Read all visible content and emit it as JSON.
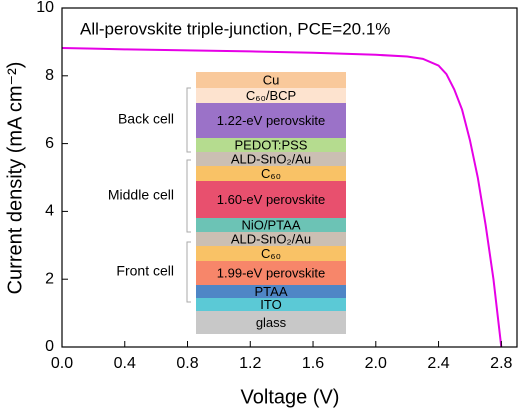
{
  "chart_data": {
    "type": "line",
    "title": "All-perovskite triple-junction, PCE=20.1%",
    "x_label": "Voltage (V)",
    "y_label": "Current density (mA cm⁻²)",
    "x": [
      0,
      0.2,
      0.4,
      0.8,
      1.2,
      1.6,
      2.0,
      2.2,
      2.3,
      2.4,
      2.45,
      2.5,
      2.55,
      2.6,
      2.65,
      2.7,
      2.75,
      2.8
    ],
    "values": [
      8.82,
      8.8,
      8.78,
      8.75,
      8.72,
      8.68,
      8.62,
      8.57,
      8.5,
      8.3,
      8.05,
      7.6,
      7.0,
      6.1,
      5.0,
      3.6,
      2.0,
      0
    ],
    "color": "#e600e6",
    "xlim": [
      0,
      2.9
    ],
    "ylim": [
      0,
      10
    ],
    "xticks": [
      {
        "value": 0,
        "label": "0.0"
      },
      0.4,
      0.8,
      1.2,
      1.6,
      {
        "value": 2,
        "label": "2.0"
      },
      2.4,
      2.8
    ],
    "yticks": [
      0,
      2,
      4,
      6,
      8,
      10
    ],
    "inset": {
      "layers": [
        {
          "label": "Cu",
          "color": "#f9c99b"
        },
        {
          "label": "C₆₀/BCP",
          "color": "#fde3cf"
        },
        {
          "label": "1.22-eV perovskite",
          "color": "#9b72c8"
        },
        {
          "label": "PEDOT:PSS",
          "color": "#b5dc8f"
        },
        {
          "label": "ALD-SnO₂/Au",
          "color": "#cbbfb3"
        },
        {
          "label": "C₆₀",
          "color": "#f9c266"
        },
        {
          "label": "1.60-eV perovskite",
          "color": "#e8506e"
        },
        {
          "label": "NiO/PTAA",
          "color": "#6cc3b5"
        },
        {
          "label": "ALD-SnO₂/Au",
          "color": "#cbbfb3"
        },
        {
          "label": "C₆₀",
          "color": "#f9c266"
        },
        {
          "label": "1.99-eV perovskite",
          "color": "#f7866a"
        },
        {
          "label": "PTAA",
          "color": "#4f86c6"
        },
        {
          "label": "ITO",
          "color": "#5bc9d6"
        },
        {
          "label": "glass",
          "color": "#c8c8c8"
        }
      ],
      "groups": [
        {
          "label": "Back cell"
        },
        {
          "label": "Middle cell"
        },
        {
          "label": "Front cell"
        }
      ]
    }
  }
}
